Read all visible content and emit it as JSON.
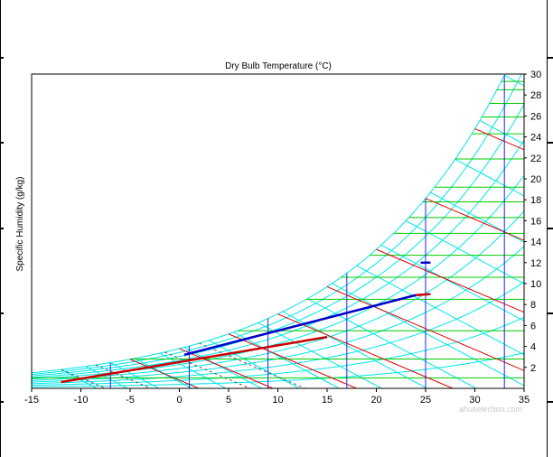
{
  "chart_data": {
    "type": "line",
    "title": "Dry Bulb Temperature (°C)",
    "xlabel": "",
    "ylabel": "Specific Humidity (g/kg)",
    "x_ticks": [
      "-15",
      "-10",
      "-5",
      "0",
      "5",
      "10",
      "15",
      "20",
      "25",
      "30",
      "35"
    ],
    "y_ticks_right": [
      "2",
      "4",
      "6",
      "8",
      "10",
      "12",
      "14",
      "16",
      "18",
      "20",
      "22",
      "24",
      "26",
      "28",
      "30"
    ],
    "xlim": [
      -15,
      35
    ],
    "ylim": [
      0,
      30
    ],
    "grid": true,
    "legend": "none",
    "colors": {
      "saturation_rh_curves": "#00e6e6",
      "humidity_gridlines": "#00cc00",
      "enthalpy_lines": "#dd0000",
      "temperature_lines": "#2222ee",
      "process_blue": "#0000cc",
      "process_red": "#cc0000"
    },
    "humidity_gridlines_gkg": [
      1,
      2.8,
      5.5,
      8.5,
      10.6,
      12.7,
      14.8,
      16.3,
      17.8,
      19.2,
      21.9,
      24.3,
      25.9,
      27.2,
      28.5,
      29.3
    ],
    "temperature_gridlines_c": [
      -7,
      1,
      9,
      17,
      25,
      33
    ],
    "series": [
      {
        "x": [
          0.5,
          24
        ],
        "y": [
          3.2,
          8.9
        ]
      },
      {
        "x": [
          -12,
          15
        ],
        "y": [
          0.6,
          4.9
        ]
      },
      {
        "x": [
          24,
          25.5
        ],
        "y": [
          8.9,
          9.0
        ]
      },
      {
        "x": [
          24.5,
          25.5
        ],
        "y": [
          12.0,
          12.0
        ]
      }
    ]
  },
  "watermark": "ahuselection.com"
}
